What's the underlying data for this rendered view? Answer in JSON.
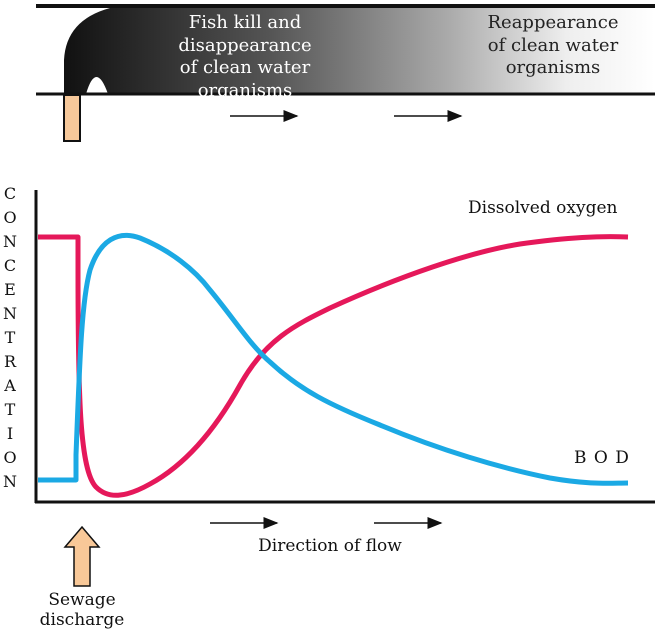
{
  "river": {
    "label_left_1": "Fish kill and",
    "label_left_2": "disappearance",
    "label_left_3": "of clean water organisms",
    "label_right_1": "Reappearance",
    "label_right_2": "of clean water",
    "label_right_3": "organisms"
  },
  "axis": {
    "y_letters": [
      "C",
      "O",
      "N",
      "C",
      "E",
      "N",
      "T",
      "R",
      "A",
      "T",
      "I",
      "O",
      "N"
    ]
  },
  "curves": {
    "dissolved_oxygen_label": "Dissolved oxygen",
    "bod_label": "B O D"
  },
  "flow": {
    "label": "Direction of flow"
  },
  "sewage": {
    "line1": "Sewage",
    "line2": "discharge"
  },
  "colors": {
    "dissolved_oxygen": "#e5185a",
    "bod": "#1ba9e4",
    "pipe": "#f6c89a",
    "sewage_arrow": "#f8c898"
  }
}
